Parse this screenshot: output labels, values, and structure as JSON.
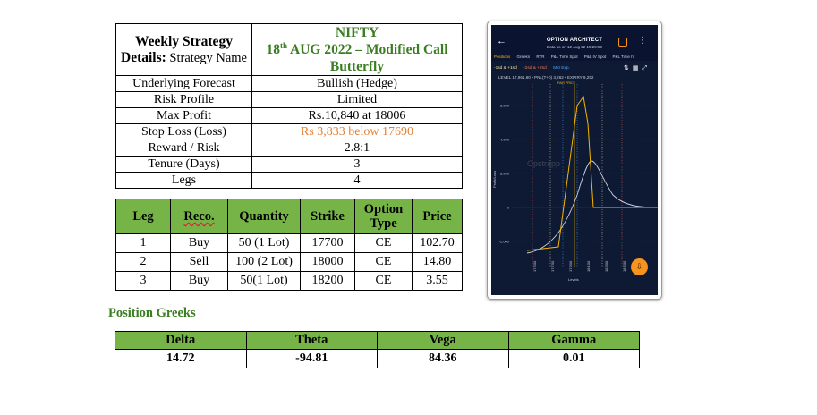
{
  "details": {
    "header_key_bold": "Weekly Strategy Details:",
    "header_key_rest": "Strategy Name",
    "header_value_line1": "NIFTY",
    "header_value_day": "18",
    "header_value_sup": "th",
    "header_value_line2_rest": "AUG 2022 – Modified Call Butterfly",
    "rows": [
      {
        "key": "Underlying Forecast",
        "value": "Bullish  (Hedge)"
      },
      {
        "key": "Risk Profile",
        "value": "Limited"
      },
      {
        "key": "Max Profit",
        "value": "Rs.10,840 at 18006"
      },
      {
        "key": "Stop Loss (Loss)",
        "value": "Rs 3,833 below 17690"
      },
      {
        "key": "Reward / Risk",
        "value": "2.8:1"
      },
      {
        "key": "Tenure (Days)",
        "value": "3"
      },
      {
        "key": "Legs",
        "value": "4"
      }
    ]
  },
  "legs": {
    "headers": [
      "Leg",
      "Reco.",
      "Quantity",
      "Strike",
      "Option Type",
      "Price"
    ],
    "rows": [
      [
        "1",
        "Buy",
        "50 (1 Lot)",
        "17700",
        "CE",
        "102.70"
      ],
      [
        "2",
        "Sell",
        "100 (2 Lot)",
        "18000",
        "CE",
        "14.80"
      ],
      [
        "3",
        "Buy",
        "50(1 Lot)",
        "18200",
        "CE",
        "3.55"
      ]
    ]
  },
  "greeks": {
    "title": "Position Greeks",
    "headers": [
      "Delta",
      "Theta",
      "Vega",
      "Gamma"
    ],
    "values": [
      "14.72",
      "-94.81",
      "84.36",
      "0.01"
    ]
  },
  "phone": {
    "title": "OPTION ARCHITECT",
    "subtitle": "Data as on 12 Aug 22 15:29:59",
    "tabs": [
      "Positions",
      "Greeks",
      "RTR",
      "P&L Time Spot",
      "P&L IV Spot",
      "P&L Time IV"
    ],
    "legend": [
      "-1sd & +1sd",
      "-2sd & +2sd",
      "Mkt Exp."
    ],
    "levels": "LEVEL 17,961.60  •  PNL(T+0) 3,262  •  EXPIRY 9,252",
    "fair_price": "FAIR PRICE",
    "y_axis_label": "Profit/Loss",
    "x_axis_label": "Levels",
    "y_ticks": [
      "8,000",
      "4,000",
      "2,000",
      "0",
      "-2,000"
    ],
    "x_ticks": [
      "17,500",
      "17,700",
      "17,900",
      "18,100",
      "18,300",
      "18,500"
    ],
    "watermark": "Opstrapp",
    "colors": {
      "expiry": "#f7b500",
      "t0": "#c9d3e6",
      "sd1": "#f3e6a0",
      "sd2": "#ff6b4a",
      "mkt": "#4da3ff"
    }
  }
}
